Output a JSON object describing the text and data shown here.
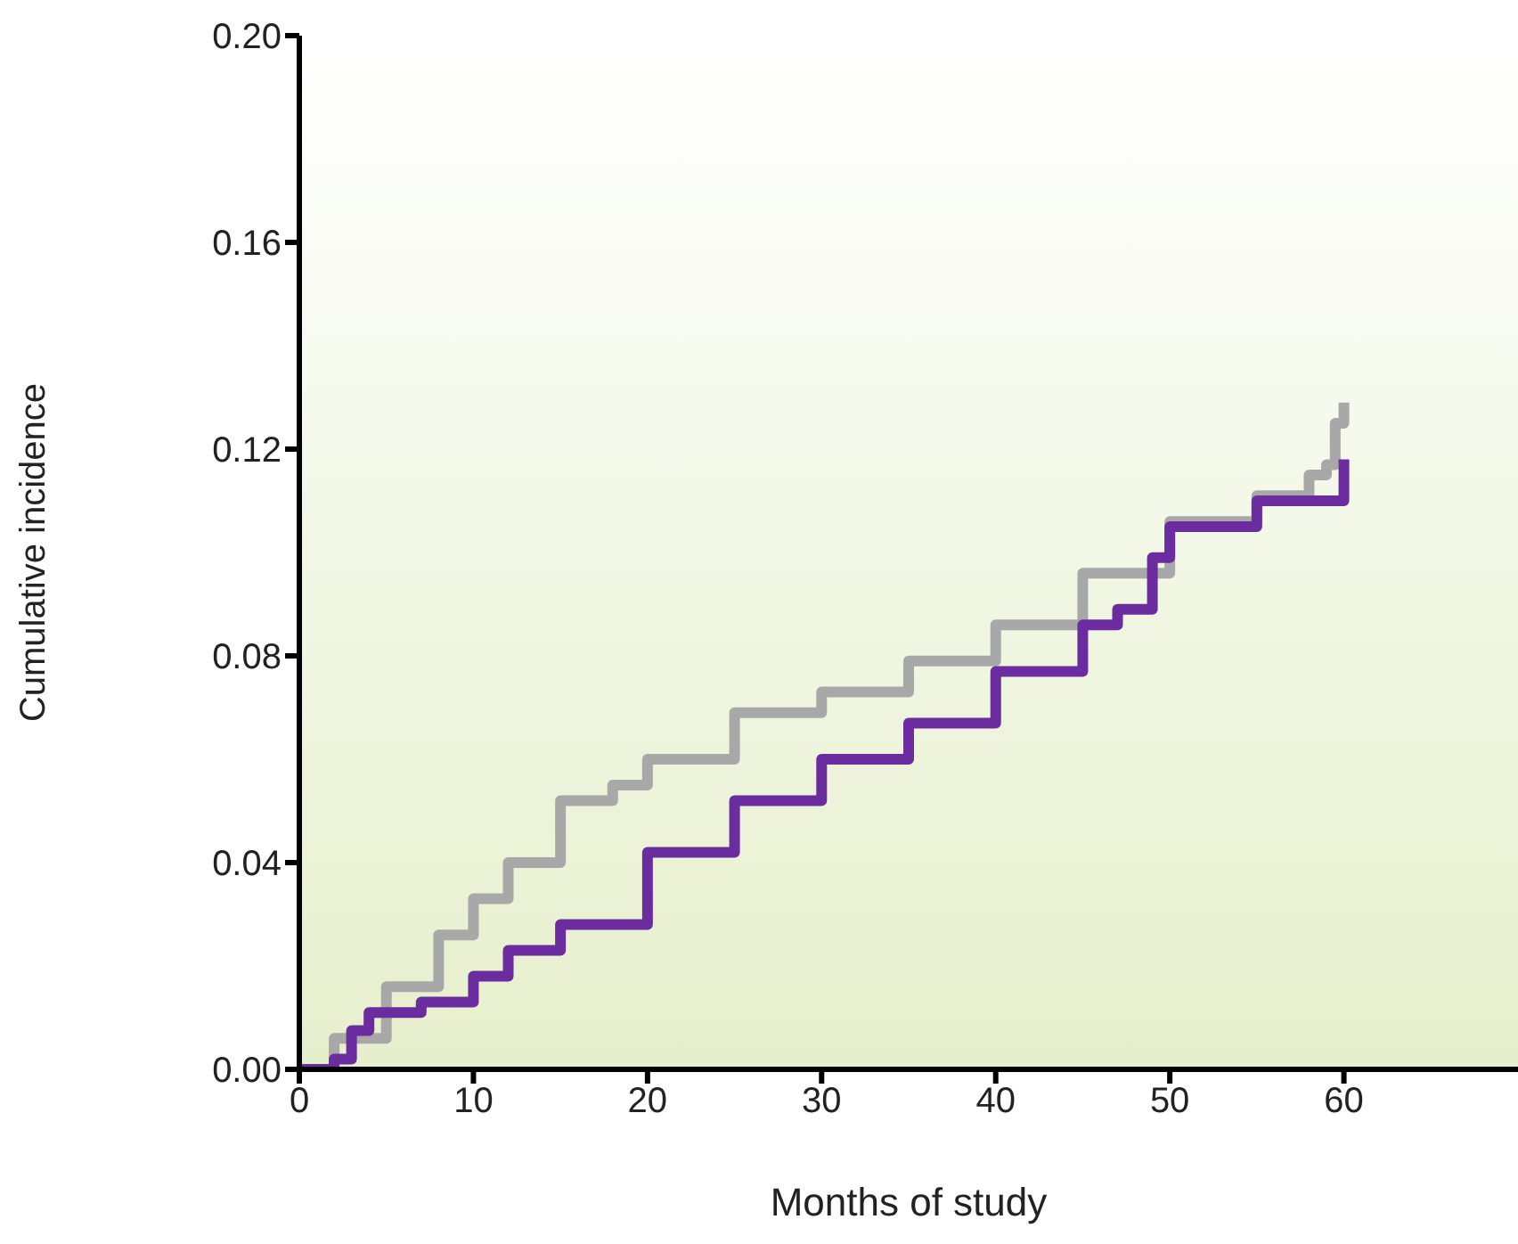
{
  "chart_data": {
    "type": "step",
    "xlabel": "Months of study",
    "ylabel": "Cumulative incidence",
    "xlim": [
      0,
      70
    ],
    "xticks": [
      0,
      10,
      20,
      30,
      40,
      50,
      60
    ],
    "ylim": [
      0,
      0.2
    ],
    "yticks": [
      {
        "value": 0,
        "label": "0.00"
      },
      {
        "value": 0.04,
        "label": "0.04"
      },
      {
        "value": 0.08,
        "label": "0.08"
      },
      {
        "value": 0.12,
        "label": "0.12"
      },
      {
        "value": 0.16,
        "label": "0.16"
      },
      {
        "value": 0.2,
        "label": "0.20"
      }
    ],
    "grid": false,
    "legend": false,
    "marker": "none",
    "line_style": "solid",
    "series": [
      {
        "color": "#a8a8a8",
        "x": [
          0,
          2,
          5,
          8,
          10,
          12,
          15,
          18,
          20,
          25,
          30,
          35,
          40,
          45,
          50,
          55,
          58,
          59,
          59.5,
          60
        ],
        "values": [
          0,
          0.006,
          0.016,
          0.026,
          0.033,
          0.04,
          0.052,
          0.055,
          0.06,
          0.069,
          0.073,
          0.079,
          0.086,
          0.096,
          0.106,
          0.111,
          0.115,
          0.117,
          0.125,
          0.129
        ]
      },
      {
        "color": "#6a2c9e",
        "x": [
          0,
          1,
          2,
          3,
          4,
          7,
          10,
          12,
          15,
          20,
          25,
          30,
          35,
          40,
          45,
          47,
          49,
          50,
          55,
          60
        ],
        "values": [
          0,
          0,
          0.002,
          0.0075,
          0.011,
          0.013,
          0.018,
          0.023,
          0.028,
          0.042,
          0.052,
          0.06,
          0.067,
          0.077,
          0.086,
          0.089,
          0.099,
          0.105,
          0.11,
          0.118
        ]
      }
    ]
  }
}
